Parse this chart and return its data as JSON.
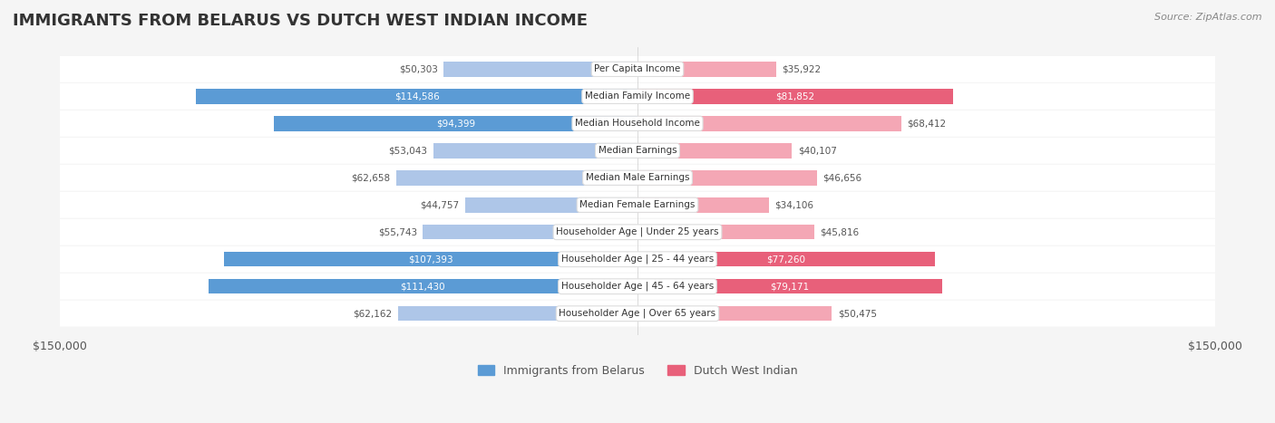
{
  "title": "IMMIGRANTS FROM BELARUS VS DUTCH WEST INDIAN INCOME",
  "source": "Source: ZipAtlas.com",
  "categories": [
    "Per Capita Income",
    "Median Family Income",
    "Median Household Income",
    "Median Earnings",
    "Median Male Earnings",
    "Median Female Earnings",
    "Householder Age | Under 25 years",
    "Householder Age | 25 - 44 years",
    "Householder Age | 45 - 64 years",
    "Householder Age | Over 65 years"
  ],
  "belarus_values": [
    50303,
    114586,
    94399,
    53043,
    62658,
    44757,
    55743,
    107393,
    111430,
    62162
  ],
  "dutch_values": [
    35922,
    81852,
    68412,
    40107,
    46656,
    34106,
    45816,
    77260,
    79171,
    50475
  ],
  "belarus_labels": [
    "$50,303",
    "$114,586",
    "$94,399",
    "$53,043",
    "$62,658",
    "$44,757",
    "$55,743",
    "$107,393",
    "$111,430",
    "$62,162"
  ],
  "dutch_labels": [
    "$35,922",
    "$81,852",
    "$68,412",
    "$40,107",
    "$46,656",
    "$34,106",
    "$45,816",
    "$77,260",
    "$79,171",
    "$50,475"
  ],
  "max_val": 150000,
  "belarus_color_dark": "#5b9bd5",
  "belarus_color_light": "#aec6e8",
  "dutch_color_dark": "#e8607a",
  "dutch_color_light": "#f4a7b5",
  "label_color_dark": "#ffffff",
  "label_color_light": "#888888",
  "bg_color": "#f5f5f5",
  "row_bg": "#ffffff",
  "dark_threshold": 70000
}
